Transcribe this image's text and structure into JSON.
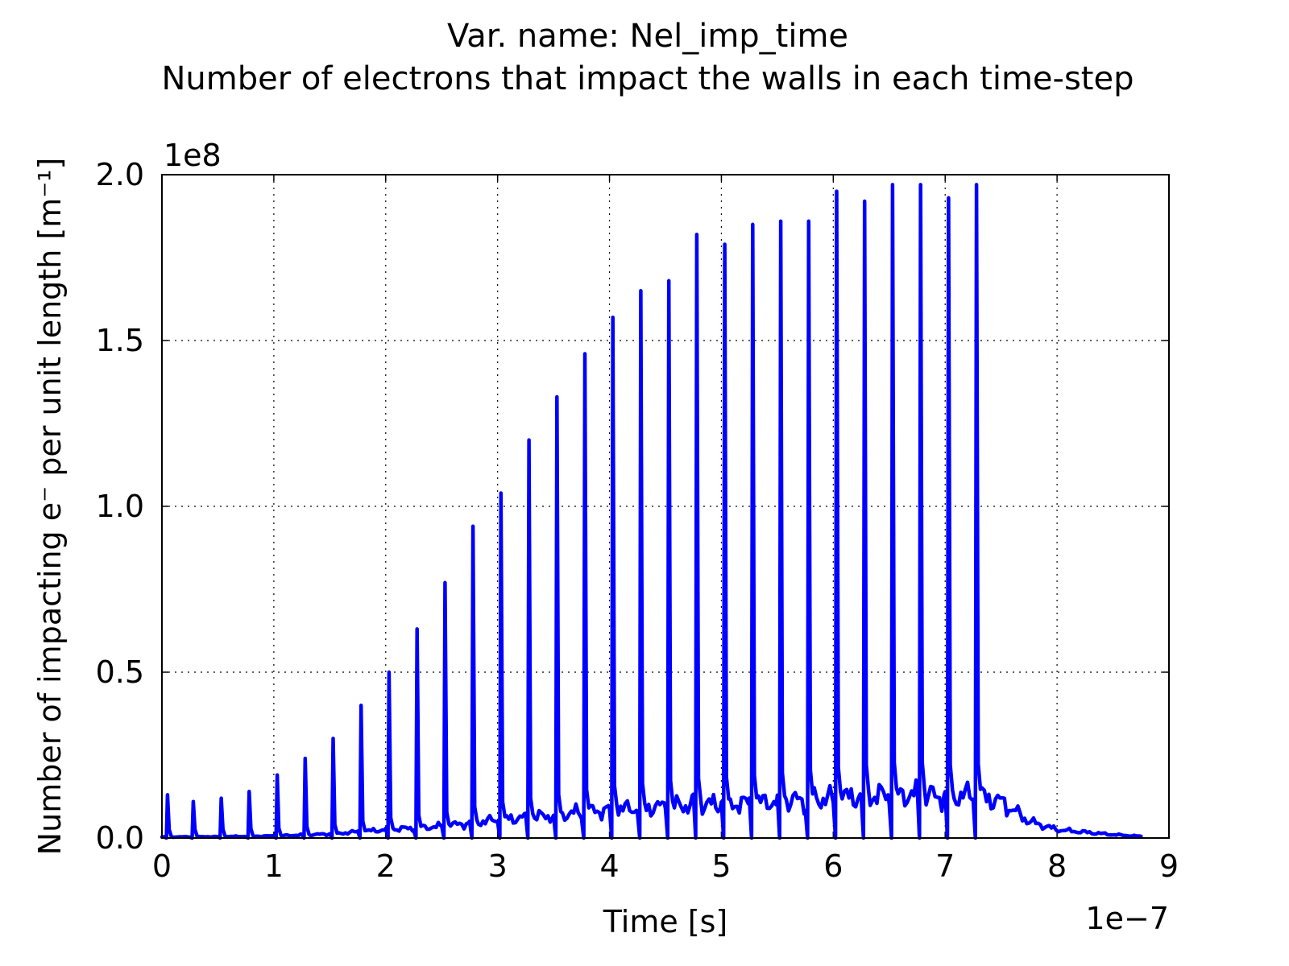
{
  "chart_data": {
    "type": "line",
    "title_line1": "Var. name: Nel_imp_time",
    "title_line2": "Number of electrons that impact the walls in each time-step",
    "xlabel": "Time [s]",
    "ylabel": "Number of impacting e⁻ per unit length [m⁻¹]",
    "x_offset_label": "1e−7",
    "y_offset_label": "1e8",
    "x_scale": 1e-07,
    "y_scale": 100000000.0,
    "xlim": [
      0,
      9
    ],
    "ylim": [
      0,
      2.0
    ],
    "x_ticks": [
      0,
      1,
      2,
      3,
      4,
      5,
      6,
      7,
      8,
      9
    ],
    "x_tick_labels": [
      "0",
      "1",
      "2",
      "3",
      "4",
      "5",
      "6",
      "7",
      "8",
      "9"
    ],
    "y_ticks": [
      0.0,
      0.5,
      1.0,
      1.5,
      2.0
    ],
    "y_tick_labels": [
      "0.0",
      "0.5",
      "1.0",
      "1.5",
      "2.0"
    ],
    "grid": true,
    "line_color": "#0000ff",
    "series": [
      {
        "peaks_x": [
          0.05,
          0.28,
          0.53,
          0.78,
          1.03,
          1.28,
          1.53,
          1.78,
          2.03,
          2.28,
          2.53,
          2.78,
          3.03,
          3.28,
          3.53,
          3.78,
          4.03,
          4.28,
          4.53,
          4.78,
          5.03,
          5.28,
          5.53,
          5.78,
          6.03,
          6.28,
          6.53,
          6.78,
          7.03,
          7.28
        ],
        "peaks_y": [
          0.13,
          0.11,
          0.12,
          0.14,
          0.19,
          0.24,
          0.3,
          0.4,
          0.5,
          0.63,
          0.77,
          0.94,
          1.04,
          1.2,
          1.33,
          1.46,
          1.57,
          1.65,
          1.68,
          1.82,
          1.79,
          1.85,
          1.86,
          1.86,
          1.95,
          1.92,
          1.97,
          1.97,
          1.93,
          1.97
        ],
        "baseline_x": [
          0.0,
          0.5,
          1.0,
          1.5,
          2.0,
          2.5,
          3.0,
          3.25,
          3.5,
          3.75,
          4.0,
          4.25,
          4.5,
          4.75,
          5.0,
          5.25,
          5.5,
          5.75,
          6.0,
          6.25,
          6.5,
          6.75,
          7.0,
          7.25,
          7.5,
          7.75,
          8.0,
          8.5,
          8.75
        ],
        "baseline_y": [
          0.003,
          0.004,
          0.006,
          0.012,
          0.025,
          0.035,
          0.055,
          0.062,
          0.068,
          0.078,
          0.085,
          0.09,
          0.095,
          0.1,
          0.102,
          0.105,
          0.11,
          0.115,
          0.12,
          0.125,
          0.13,
          0.13,
          0.125,
          0.13,
          0.11,
          0.05,
          0.025,
          0.01,
          0.005
        ]
      }
    ]
  }
}
